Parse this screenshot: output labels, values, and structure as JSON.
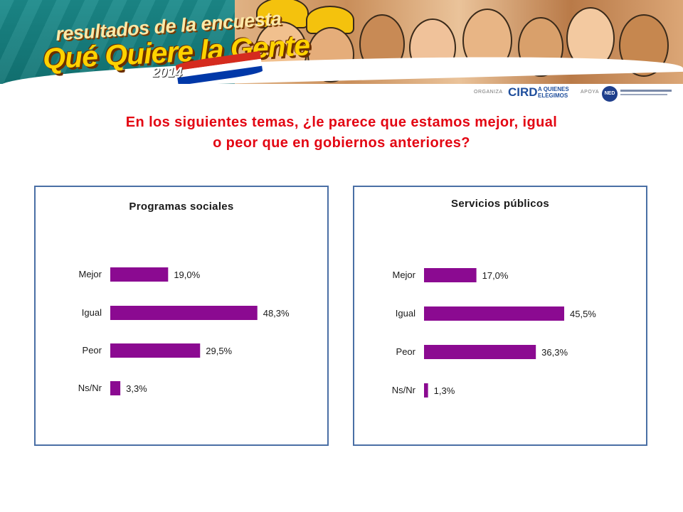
{
  "banner": {
    "tagline": "resultados de la encuesta",
    "title": "Qué Quiere la Gente",
    "year": "2014"
  },
  "sponsors": {
    "organiza_label": "ORGANIZA",
    "ird_logo": "CIRD",
    "aquienes_logo": "A QUIENES ELEGIMOS",
    "apoya_label": "APOYA",
    "ned_logo": "NED"
  },
  "question": {
    "line1": "En los siguientes temas, ¿le parece que estamos mejor, igual",
    "line2": "o peor que en gobiernos anteriores?",
    "color": "#e30613"
  },
  "colors": {
    "bar": "#8b0a91",
    "panel_border": "#4a6fa5"
  },
  "chart_data": [
    {
      "type": "bar",
      "orientation": "horizontal",
      "title": "Programas sociales",
      "categories": [
        "Mejor",
        "Igual",
        "Peor",
        "Ns/Nr"
      ],
      "values": [
        19.0,
        48.3,
        29.5,
        3.3
      ],
      "value_labels": [
        "19,0%",
        "48,3%",
        "29,5%",
        "3,3%"
      ],
      "xlim": [
        0,
        50
      ],
      "grid": false
    },
    {
      "type": "bar",
      "orientation": "horizontal",
      "title": "Servicios públicos",
      "categories": [
        "Mejor",
        "Igual",
        "Peor",
        "Ns/Nr"
      ],
      "values": [
        17.0,
        45.5,
        36.3,
        1.3
      ],
      "value_labels": [
        "17,0%",
        "45,5%",
        "36,3%",
        "1,3%"
      ],
      "xlim": [
        0,
        50
      ],
      "grid": false
    }
  ]
}
